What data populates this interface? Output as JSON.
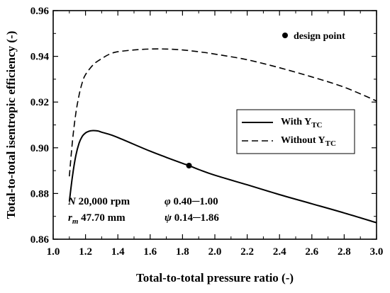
{
  "chart_data": {
    "type": "line",
    "xlabel": "Total-to-total pressure ratio (-)",
    "ylabel": "Total-to-total isentropic efficiency (-)",
    "xlim": [
      1.0,
      3.0
    ],
    "ylim": [
      0.86,
      0.96
    ],
    "xticks": [
      "1.0",
      "1.2",
      "1.4",
      "1.6",
      "1.8",
      "2.0",
      "2.2",
      "2.4",
      "2.6",
      "2.8",
      "3.0"
    ],
    "yticks": [
      "0.86",
      "0.88",
      "0.90",
      "0.92",
      "0.94",
      "0.96"
    ],
    "grid": false,
    "legend_position": "right",
    "series": [
      {
        "name_main": "With Y",
        "name_sub": "TC",
        "style": "solid",
        "x": [
          1.1,
          1.12,
          1.14,
          1.16,
          1.18,
          1.2,
          1.22,
          1.24,
          1.26,
          1.28,
          1.3,
          1.35,
          1.4,
          1.5,
          1.6,
          1.7,
          1.8,
          1.84,
          1.9,
          2.0,
          2.2,
          2.4,
          2.6,
          2.8,
          3.0
        ],
        "y": [
          0.8765,
          0.888,
          0.8965,
          0.902,
          0.905,
          0.9065,
          0.9072,
          0.9075,
          0.9075,
          0.9073,
          0.9068,
          0.9058,
          0.9045,
          0.9015,
          0.8985,
          0.8958,
          0.8932,
          0.8922,
          0.8905,
          0.888,
          0.8838,
          0.8795,
          0.8755,
          0.8715,
          0.8672
        ]
      },
      {
        "name_main": "Without Y",
        "name_sub": "TC",
        "style": "dashed",
        "x": [
          1.1,
          1.12,
          1.14,
          1.16,
          1.18,
          1.2,
          1.25,
          1.3,
          1.35,
          1.4,
          1.5,
          1.6,
          1.7,
          1.8,
          1.9,
          2.0,
          2.2,
          2.4,
          2.6,
          2.8,
          3.0
        ],
        "y": [
          0.8875,
          0.9035,
          0.915,
          0.923,
          0.9285,
          0.932,
          0.9365,
          0.939,
          0.941,
          0.942,
          0.9428,
          0.9432,
          0.9432,
          0.9428,
          0.942,
          0.941,
          0.9385,
          0.935,
          0.931,
          0.9265,
          0.9205
        ]
      }
    ],
    "design_point": {
      "label": "design point",
      "x": 1.84,
      "y": 0.8922
    },
    "annotation": {
      "line1_sym": "N",
      "line1_a": " 20,000 rpm",
      "line1_phi": "φ",
      "line1_b": " 0.40─1.00",
      "line2_sym": "r",
      "line2_sub": "m",
      "line2_a": " 47.70 mm",
      "line2_psi": "ψ",
      "line2_b": " 0.14─1.86"
    }
  }
}
